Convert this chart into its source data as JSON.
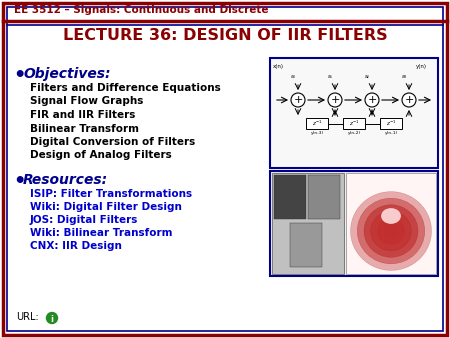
{
  "header_text": "EE 3512 – Signals: Continuous and Discrete",
  "title": "LECTURE 36: DESIGN OF IIR FILTERS",
  "objectives_header": "Objectives:",
  "objectives_items": [
    "Filters and Difference Equations",
    "Signal Flow Graphs",
    "FIR and IIR Filters",
    "Bilinear Transform",
    "Digital Conversion of Filters",
    "Design of Analog Filters"
  ],
  "resources_header": "Resources:",
  "resources_items": [
    "ISIP: Filter Transformations",
    "Wiki: Digital Filter Design",
    "JOS: Digital Filters",
    "Wiki: Bilinear Transform",
    "CNX: IIR Design"
  ],
  "url_text": "URL:",
  "bg_color": "#ffffff",
  "maroon": "#8B0000",
  "darkblue": "#00008B",
  "linkblue": "#0000CD",
  "black": "#000000",
  "green": "#228B22",
  "white": "#ffffff",
  "figsize": [
    4.5,
    3.38
  ],
  "dpi": 100
}
